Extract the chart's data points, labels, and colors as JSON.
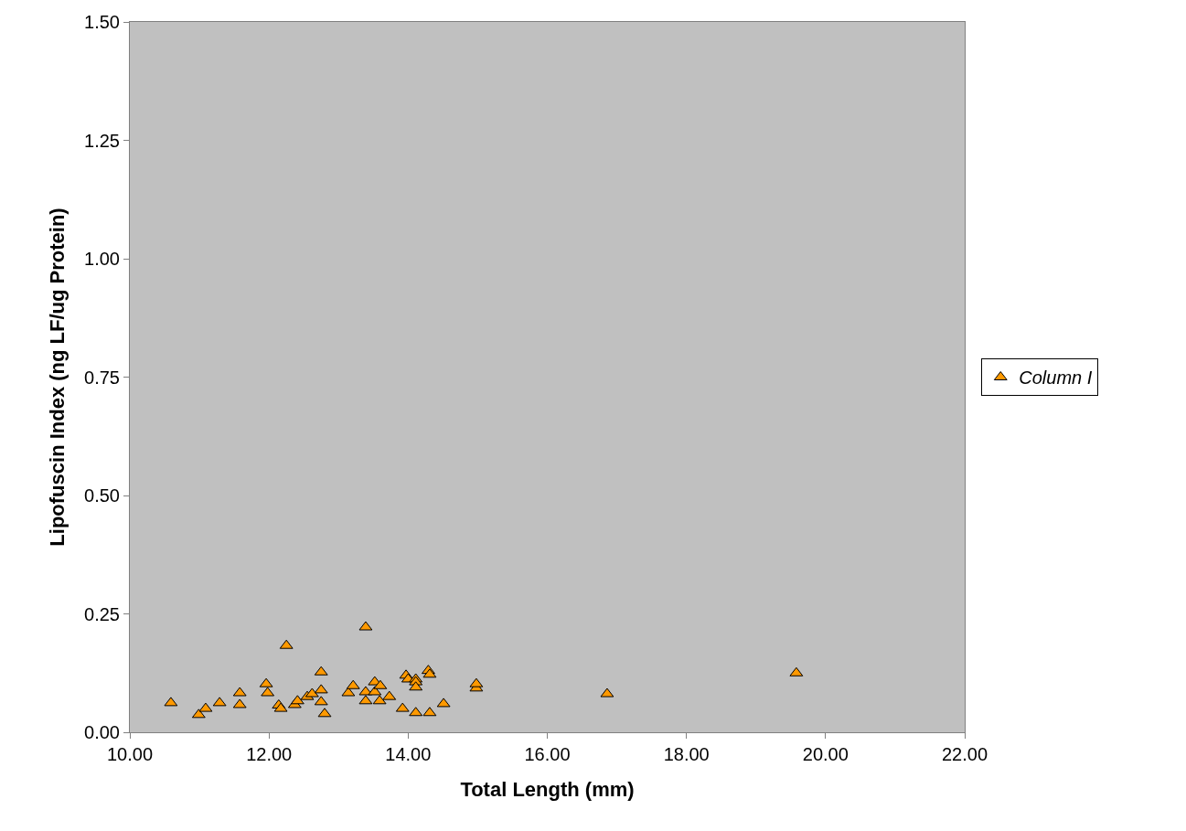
{
  "chart_data": {
    "type": "scatter",
    "xlabel": "Total Length (mm)",
    "ylabel": "Lipofuscin Index (ng LF/ug Protein)",
    "xlim": [
      10,
      22
    ],
    "xticks": [
      {
        "value": 10,
        "label": "10.00"
      },
      {
        "value": 12,
        "label": "12.00"
      },
      {
        "value": 14,
        "label": "14.00"
      },
      {
        "value": 16,
        "label": "16.00"
      },
      {
        "value": 18,
        "label": "18.00"
      },
      {
        "value": 20,
        "label": "20.00"
      },
      {
        "value": 22,
        "label": "22.00"
      }
    ],
    "ylim": [
      0,
      1.5
    ],
    "yticks": [
      {
        "value": 0,
        "label": "0.00"
      },
      {
        "value": 0.25,
        "label": "0.25"
      },
      {
        "value": 0.5,
        "label": "0.50"
      },
      {
        "value": 0.75,
        "label": "0.75"
      },
      {
        "value": 1,
        "label": "1.00"
      },
      {
        "value": 1.25,
        "label": "1.25"
      },
      {
        "value": 1.5,
        "label": "1.50"
      }
    ],
    "grid": false,
    "legend": "right",
    "marker": "triangle",
    "series": [
      {
        "name": "Column I",
        "color": "#ff9900",
        "x": [
          10.59,
          10.99,
          11.09,
          11.29,
          11.58,
          11.58,
          11.96,
          11.98,
          12.14,
          12.17,
          12.25,
          12.37,
          12.41,
          12.55,
          12.62,
          12.75,
          12.75,
          12.75,
          12.8,
          13.14,
          13.21,
          13.39,
          13.39,
          13.39,
          13.52,
          13.52,
          13.6,
          13.59,
          13.73,
          13.92,
          13.97,
          14.0,
          14.11,
          14.11,
          14.11,
          14.11,
          14.29,
          14.31,
          14.31,
          14.51,
          14.98,
          14.98,
          16.86,
          19.58
        ],
        "values": [
          0.062,
          0.037,
          0.05,
          0.062,
          0.083,
          0.058,
          0.102,
          0.083,
          0.057,
          0.05,
          0.183,
          0.058,
          0.066,
          0.075,
          0.081,
          0.127,
          0.089,
          0.064,
          0.039,
          0.083,
          0.098,
          0.222,
          0.085,
          0.066,
          0.106,
          0.085,
          0.098,
          0.066,
          0.075,
          0.05,
          0.12,
          0.112,
          0.112,
          0.106,
          0.095,
          0.041,
          0.13,
          0.122,
          0.041,
          0.06,
          0.093,
          0.102,
          0.081,
          0.125
        ]
      }
    ]
  }
}
